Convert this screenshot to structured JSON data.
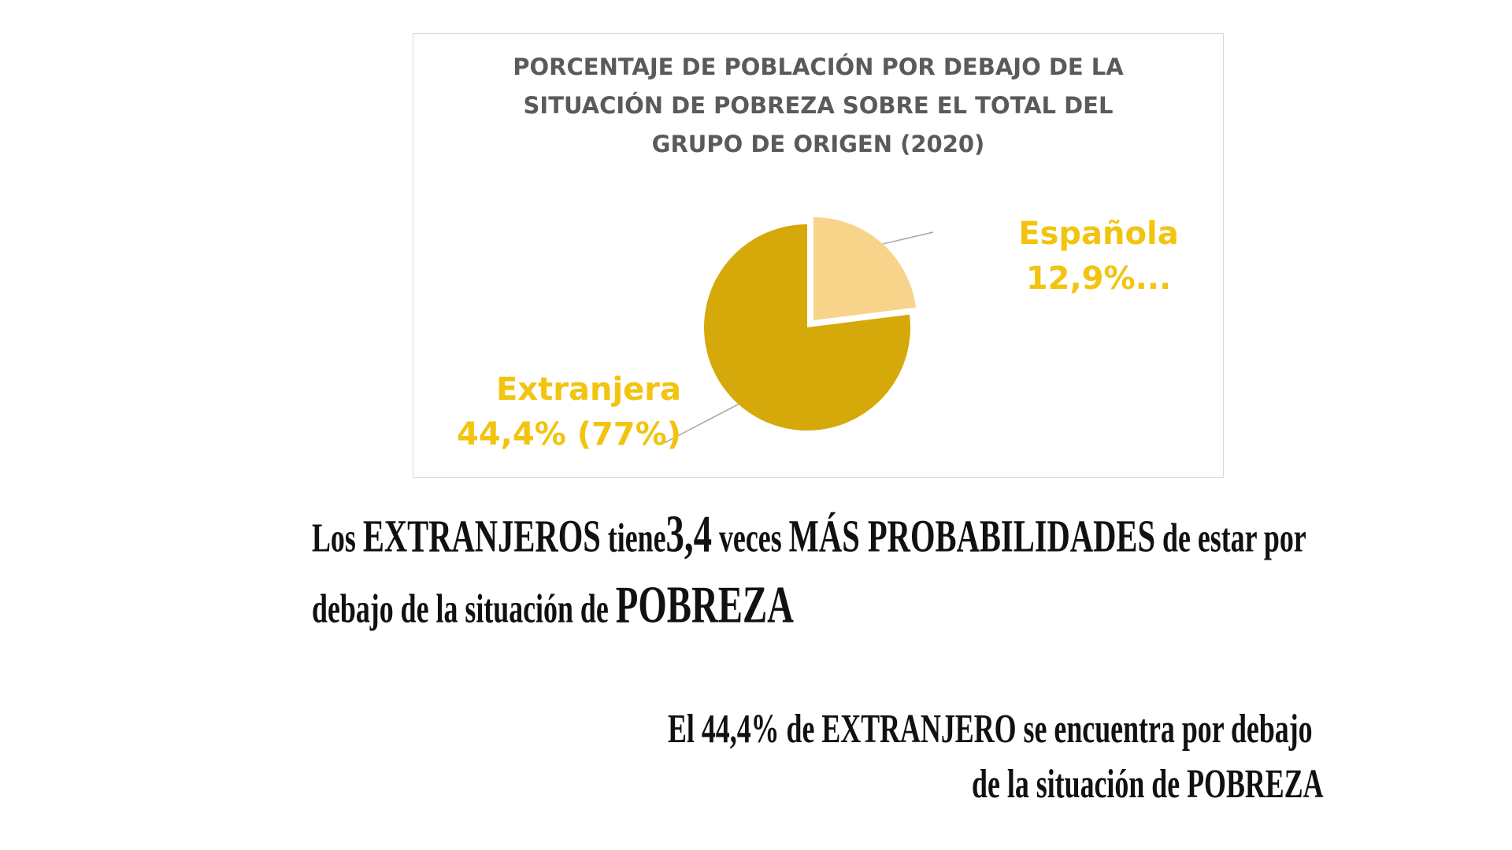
{
  "chart_data": {
    "type": "pie",
    "title_lines": [
      "PORCENTAJE DE POBLACIÓN POR DEBAJO DE LA",
      "SITUACIÓN DE POBREZA SOBRE EL TOTAL DEL",
      "GRUPO DE ORIGEN (2020)"
    ],
    "slices": [
      {
        "name": "Española",
        "label": "12,9%...",
        "value": 12.9,
        "share": 23,
        "color": "#f7d489",
        "exploded": true
      },
      {
        "name": "Extranjera",
        "label": "44,4% (77%)",
        "value": 44.4,
        "share": 77,
        "color": "#d6a90a",
        "exploded": false
      }
    ],
    "label_color": "#f2c40f",
    "title_color": "#5a5a5a",
    "leader_line_color": "#a6a6a6"
  },
  "captions": {
    "main": {
      "l1_a": "Los ",
      "l1_b": "EXTRANJEROS",
      "l1_c": " tiene",
      "l1_d": "3,4",
      "l1_e": "  veces ",
      "l1_f": "MÁS PROBABILIDADES",
      "l1_g": " de estar por",
      "l2_a": "debajo de la situación de ",
      "l2_b": "POBREZA"
    },
    "secondary": {
      "line1": "El 44,4%  de EXTRANJERO se encuentra  por debajo",
      "line2": "de la situación de POBREZA"
    }
  }
}
